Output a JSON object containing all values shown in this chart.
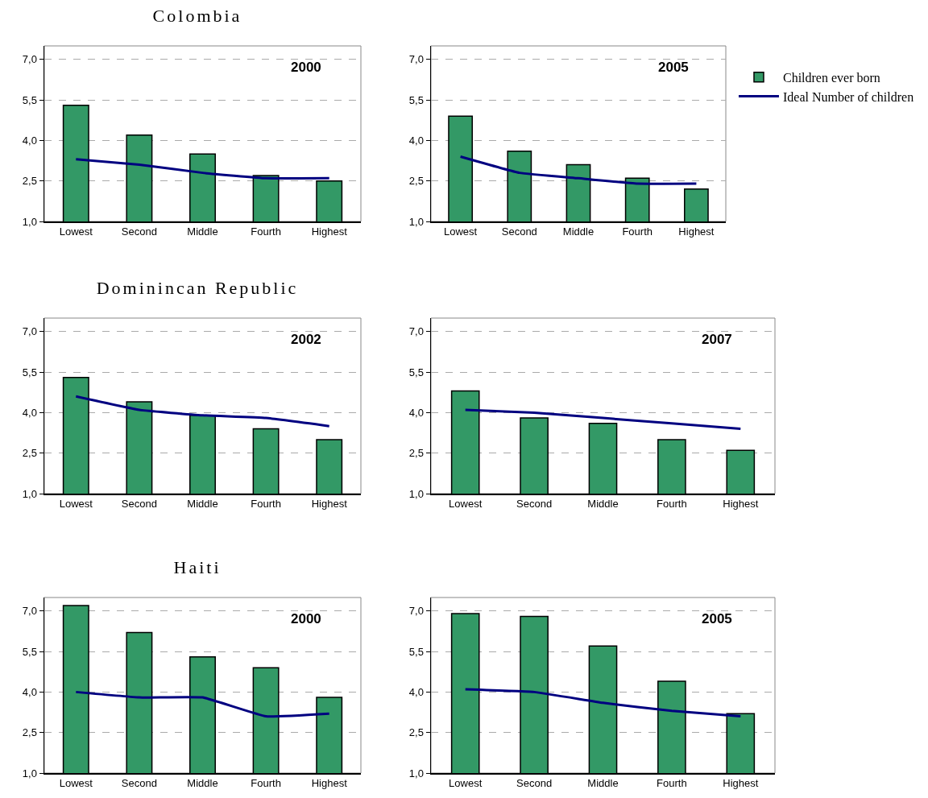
{
  "chart_data": [
    {
      "type": "bar",
      "title": "Colombia",
      "annotations": [
        "2000"
      ],
      "categories": [
        "Lowest",
        "Second",
        "Middle",
        "Fourth",
        "Highest"
      ],
      "ylim": [
        1,
        7.5
      ],
      "yticks": [
        {
          "value": 1,
          "label": "1,0"
        },
        {
          "value": 2.5,
          "label": "2,5"
        },
        {
          "value": 4,
          "label": "4,0"
        },
        {
          "value": 5.5,
          "label": "5,5"
        },
        {
          "value": 7,
          "label": "7,0"
        }
      ],
      "grid": "y",
      "legend": false,
      "series": [
        {
          "color": "#339966",
          "values": [
            5.3,
            4.2,
            3.5,
            2.7,
            2.5
          ]
        },
        {
          "type": "line",
          "color": "#000080",
          "values": [
            3.3,
            3.1,
            2.8,
            2.6,
            2.6
          ]
        }
      ]
    },
    {
      "type": "bar",
      "annotations": [
        "2005"
      ],
      "categories": [
        "Lowest",
        "Second",
        "Middle",
        "Fourth",
        "Highest"
      ],
      "ylim": [
        1,
        7.5
      ],
      "yticks": [
        {
          "value": 1,
          "label": "1,0"
        },
        {
          "value": 2.5,
          "label": "2,5"
        },
        {
          "value": 4,
          "label": "4,0"
        },
        {
          "value": 5.5,
          "label": "5,5"
        },
        {
          "value": 7,
          "label": "7,0"
        }
      ],
      "grid": "y",
      "legend": "right",
      "series": [
        {
          "name": "Children ever born",
          "color": "#339966",
          "values": [
            4.9,
            3.6,
            3.1,
            2.6,
            2.2
          ]
        },
        {
          "type": "line",
          "name": "Ideal Number of children",
          "color": "#000080",
          "values": [
            3.4,
            2.8,
            2.6,
            2.4,
            2.4
          ]
        }
      ]
    },
    {
      "type": "bar",
      "title": "Dominincan Republic",
      "annotations": [
        "2002"
      ],
      "categories": [
        "Lowest",
        "Second",
        "Middle",
        "Fourth",
        "Highest"
      ],
      "ylim": [
        1,
        7.5
      ],
      "yticks": [
        {
          "value": 1,
          "label": "1,0"
        },
        {
          "value": 2.5,
          "label": "2,5"
        },
        {
          "value": 4,
          "label": "4,0"
        },
        {
          "value": 5.5,
          "label": "5,5"
        },
        {
          "value": 7,
          "label": "7,0"
        }
      ],
      "grid": "y",
      "legend": false,
      "series": [
        {
          "color": "#339966",
          "values": [
            5.3,
            4.4,
            3.9,
            3.4,
            3.0
          ]
        },
        {
          "type": "line",
          "color": "#000080",
          "values": [
            4.6,
            4.1,
            3.9,
            3.8,
            3.5
          ]
        }
      ]
    },
    {
      "type": "bar",
      "annotations": [
        "2007"
      ],
      "categories": [
        "Lowest",
        "Second",
        "Middle",
        "Fourth",
        "Highest"
      ],
      "ylim": [
        1,
        7.5
      ],
      "yticks": [
        {
          "value": 1,
          "label": "1,0"
        },
        {
          "value": 2.5,
          "label": "2,5"
        },
        {
          "value": 4,
          "label": "4,0"
        },
        {
          "value": 5.5,
          "label": "5,5"
        },
        {
          "value": 7,
          "label": "7,0"
        }
      ],
      "grid": "y",
      "legend": false,
      "series": [
        {
          "color": "#339966",
          "values": [
            4.8,
            3.8,
            3.6,
            3.0,
            2.6
          ]
        },
        {
          "type": "line",
          "color": "#000080",
          "values": [
            4.1,
            4.0,
            3.8,
            3.6,
            3.4
          ]
        }
      ]
    },
    {
      "type": "bar",
      "title": "Haiti",
      "annotations": [
        "2000"
      ],
      "categories": [
        "Lowest",
        "Second",
        "Middle",
        "Fourth",
        "Highest"
      ],
      "ylim": [
        1,
        7.5
      ],
      "yticks": [
        {
          "value": 1,
          "label": "1,0"
        },
        {
          "value": 2.5,
          "label": "2,5"
        },
        {
          "value": 4,
          "label": "4,0"
        },
        {
          "value": 5.5,
          "label": "5,5"
        },
        {
          "value": 7,
          "label": "7,0"
        }
      ],
      "grid": "y",
      "legend": false,
      "series": [
        {
          "color": "#339966",
          "values": [
            7.2,
            6.2,
            5.3,
            4.9,
            3.8
          ]
        },
        {
          "type": "line",
          "color": "#000080",
          "values": [
            4.0,
            3.8,
            3.8,
            3.1,
            3.2
          ]
        }
      ]
    },
    {
      "type": "bar",
      "annotations": [
        "2005"
      ],
      "categories": [
        "Lowest",
        "Second",
        "Middle",
        "Fourth",
        "Highest"
      ],
      "ylim": [
        1,
        7.5
      ],
      "yticks": [
        {
          "value": 1,
          "label": "1,0"
        },
        {
          "value": 2.5,
          "label": "2,5"
        },
        {
          "value": 4,
          "label": "4,0"
        },
        {
          "value": 5.5,
          "label": "5,5"
        },
        {
          "value": 7,
          "label": "7,0"
        }
      ],
      "grid": "y",
      "legend": false,
      "series": [
        {
          "color": "#339966",
          "values": [
            6.9,
            6.8,
            5.7,
            4.4,
            3.2
          ]
        },
        {
          "type": "line",
          "color": "#000080",
          "values": [
            4.1,
            4.0,
            3.6,
            3.3,
            3.1
          ]
        }
      ]
    }
  ]
}
